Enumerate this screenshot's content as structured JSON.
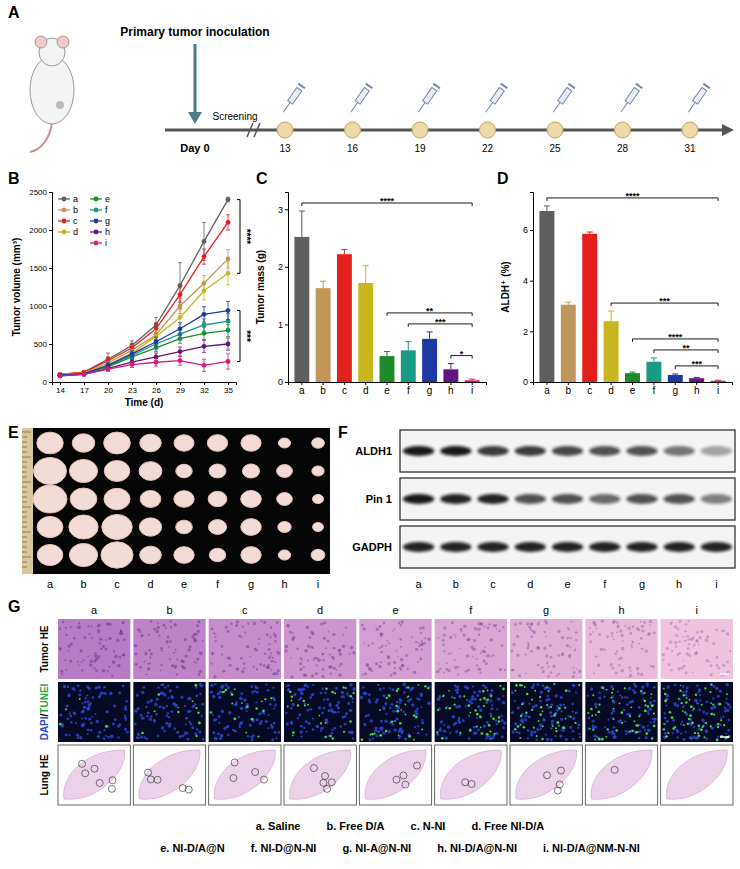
{
  "chart_data": [
    {
      "panel": "B",
      "type": "line",
      "x": [
        14,
        17,
        20,
        23,
        26,
        29,
        32,
        35
      ],
      "xlim": [
        13,
        36
      ],
      "xticks": [
        14,
        17,
        20,
        23,
        26,
        29,
        32,
        35
      ],
      "ylim": [
        0,
        2500
      ],
      "yticks": [
        0,
        500,
        1000,
        1500,
        2000,
        2500
      ],
      "x_label": "Time (d)",
      "y_label": "Tumor volume (mm³)",
      "legend": "upper left",
      "marker": "circle",
      "grid": false,
      "series": [
        {
          "name": "a",
          "color": "#5f5f5f",
          "values": [
            100,
            130,
            300,
            480,
            750,
            1270,
            1850,
            2400
          ],
          "errors": [
            20,
            20,
            80,
            60,
            100,
            300,
            250,
            30
          ]
        },
        {
          "name": "b",
          "color": "#c1965a",
          "values": [
            100,
            120,
            250,
            420,
            620,
            1000,
            1300,
            1620
          ],
          "errors": [
            10,
            10,
            50,
            60,
            80,
            100,
            100,
            120
          ]
        },
        {
          "name": "c",
          "color": "#e3201b",
          "values": [
            100,
            130,
            280,
            450,
            700,
            1150,
            1650,
            2100
          ],
          "errors": [
            10,
            10,
            50,
            60,
            80,
            100,
            100,
            100
          ]
        },
        {
          "name": "d",
          "color": "#c9b61f",
          "values": [
            100,
            120,
            230,
            380,
            600,
            850,
            1200,
            1430
          ],
          "errors": [
            10,
            10,
            40,
            50,
            80,
            100,
            120,
            150
          ]
        },
        {
          "name": "e",
          "color": "#1f8a2a",
          "values": [
            90,
            110,
            200,
            330,
            450,
            570,
            640,
            680
          ],
          "errors": [
            10,
            10,
            30,
            40,
            50,
            60,
            80,
            80
          ]
        },
        {
          "name": "f",
          "color": "#1a9a85",
          "values": [
            90,
            110,
            210,
            350,
            500,
            630,
            750,
            800
          ],
          "errors": [
            10,
            10,
            30,
            40,
            60,
            70,
            80,
            100
          ]
        },
        {
          "name": "g",
          "color": "#1f39a3",
          "values": [
            90,
            110,
            220,
            370,
            530,
            700,
            890,
            940
          ],
          "errors": [
            10,
            10,
            40,
            40,
            60,
            80,
            100,
            120
          ]
        },
        {
          "name": "h",
          "color": "#62157d",
          "values": [
            80,
            100,
            180,
            260,
            330,
            400,
            470,
            500
          ],
          "errors": [
            10,
            10,
            30,
            40,
            50,
            60,
            80,
            80
          ]
        },
        {
          "name": "i",
          "color": "#d61c7c",
          "values": [
            80,
            100,
            170,
            230,
            260,
            280,
            220,
            270
          ],
          "errors": [
            10,
            10,
            30,
            40,
            50,
            60,
            80,
            100
          ]
        }
      ],
      "annotations": [
        {
          "label": "****",
          "from": "a",
          "to": "d"
        },
        {
          "label": "***",
          "from": "g",
          "to": "i"
        }
      ]
    },
    {
      "panel": "C",
      "type": "bar",
      "categories": [
        "a",
        "b",
        "c",
        "d",
        "e",
        "f",
        "g",
        "h",
        "i"
      ],
      "values": [
        2.52,
        1.63,
        2.22,
        1.72,
        0.45,
        0.55,
        0.75,
        0.22,
        0.03
      ],
      "errors": [
        0.45,
        0.12,
        0.08,
        0.3,
        0.08,
        0.15,
        0.12,
        0.1,
        0.02
      ],
      "colors": [
        "#5f5f5f",
        "#c1965a",
        "#e3201b",
        "#c9b61f",
        "#1f8a2a",
        "#1a9a85",
        "#1f39a3",
        "#62157d",
        "#d61c7c"
      ],
      "ylim": [
        0,
        3.3
      ],
      "yticks": [
        0,
        1,
        2,
        3
      ],
      "y_label": "Tumor mass (g)",
      "grid": false,
      "annotations": [
        {
          "label": "****",
          "from": "a",
          "to": "i"
        },
        {
          "label": "**",
          "from": "e",
          "to": "i"
        },
        {
          "label": "***",
          "from": "f",
          "to": "i"
        },
        {
          "label": "*",
          "from": "h",
          "to": "i"
        }
      ]
    },
    {
      "panel": "D",
      "type": "bar",
      "categories": [
        "a",
        "b",
        "c",
        "d",
        "e",
        "f",
        "g",
        "h",
        "i"
      ],
      "values": [
        6.75,
        3.05,
        5.85,
        2.4,
        0.35,
        0.8,
        0.28,
        0.15,
        0.05
      ],
      "errors": [
        0.2,
        0.1,
        0.07,
        0.4,
        0.04,
        0.15,
        0.04,
        0.03,
        0.02
      ],
      "colors": [
        "#5f5f5f",
        "#c1965a",
        "#e3201b",
        "#c9b61f",
        "#1f8a2a",
        "#1a9a85",
        "#1f39a3",
        "#62157d",
        "#d61c7c"
      ],
      "ylim": [
        0,
        7.5
      ],
      "yticks": [
        0,
        2,
        4,
        6
      ],
      "y_label": "ALDH⁺ (%)",
      "grid": false,
      "annotations": [
        {
          "label": "****",
          "from": "a",
          "to": "i"
        },
        {
          "label": "***",
          "from": "d",
          "to": "i"
        },
        {
          "label": "****",
          "from": "e",
          "to": "i"
        },
        {
          "label": "**",
          "from": "f",
          "to": "i"
        },
        {
          "label": "***",
          "from": "g",
          "to": "i"
        }
      ]
    }
  ],
  "panel_a": {
    "label": "A",
    "inoculation": "Primary tumor inoculation",
    "screening": "Screening",
    "day0": "Day 0",
    "days": [
      13,
      16,
      19,
      22,
      25,
      28,
      31
    ]
  },
  "panel_e": {
    "label": "E",
    "lanes": [
      "a",
      "b",
      "c",
      "d",
      "e",
      "f",
      "g",
      "h",
      "i"
    ]
  },
  "panel_f": {
    "label": "F",
    "blots": [
      "ALDH1",
      "Pin 1",
      "GADPH"
    ],
    "lanes": [
      "a",
      "b",
      "c",
      "d",
      "e",
      "f",
      "g",
      "h",
      "i"
    ]
  },
  "panel_g": {
    "label": "G",
    "columns": [
      "a",
      "b",
      "c",
      "d",
      "e",
      "f",
      "g",
      "h",
      "i"
    ],
    "rows": [
      [
        "Tumor HE"
      ],
      [
        "DAPI",
        "/",
        "TUNEI"
      ],
      [
        "Lung HE"
      ]
    ]
  },
  "groups": [
    [
      "a. Saline",
      "b. Free D/A",
      "c. N-NI",
      "d. Free NI-D/A"
    ],
    [
      "e. NI-D/A@N",
      "f. NI-D@N-NI",
      "g. NI-A@N-NI",
      "h. NI-D/A@N-NI",
      "i. NI-D/A@NM-N-NI"
    ]
  ]
}
